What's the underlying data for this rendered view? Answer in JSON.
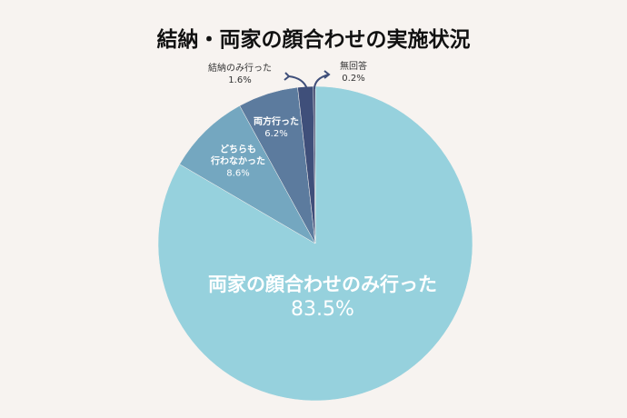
{
  "chart_data": {
    "type": "pie",
    "title": "結納・両家の顔合わせの実施状況",
    "categories": [
      "両家の顔合わせのみ行った",
      "どちらも\n行わなかった",
      "両方行った",
      "結納のみ行った",
      "無回答"
    ],
    "values": [
      83.5,
      8.6,
      6.2,
      1.6,
      0.2
    ],
    "value_labels": [
      "83.5%",
      "8.6%",
      "6.2%",
      "1.6%",
      "0.2%"
    ],
    "colors": [
      "#96d1dd",
      "#74a7c0",
      "#5c7b9e",
      "#3f4f7a",
      "#2b345f"
    ]
  }
}
